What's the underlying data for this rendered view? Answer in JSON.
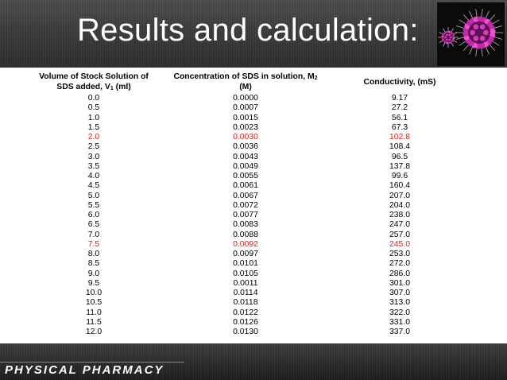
{
  "slide": {
    "title": "Results and calculation:",
    "footer": "PHYSICAL PHARMACY",
    "image_alt": "micelle",
    "colors": {
      "highlight": "#e0201b",
      "header_bg": "#3a3a3a"
    }
  },
  "table": {
    "col1": {
      "line1": "Volume of Stock Solution of",
      "line2a": "SDS added, V",
      "sub": "1",
      "line2b": " (ml)"
    },
    "col2": {
      "line1a": "Concentration of SDS in solution, M",
      "sub": "2",
      "line2": "(M)"
    },
    "col3": {
      "label": "Conductivity, (mS)"
    },
    "rows": [
      {
        "volume": "0.0",
        "conc": "0.0000",
        "cond": "9.17",
        "highlight": false
      },
      {
        "volume": "0.5",
        "conc": "0.0007",
        "cond": "27.2",
        "highlight": false
      },
      {
        "volume": "1.0",
        "conc": "0.0015",
        "cond": "56.1",
        "highlight": false
      },
      {
        "volume": "1.5",
        "conc": "0.0023",
        "cond": "67.3",
        "highlight": false
      },
      {
        "volume": "2.0",
        "conc": "0.0030",
        "cond": "102.8",
        "highlight": true
      },
      {
        "volume": "2.5",
        "conc": "0.0036",
        "cond": "108.4",
        "highlight": false
      },
      {
        "volume": "3.0",
        "conc": "0.0043",
        "cond": "96.5",
        "highlight": false
      },
      {
        "volume": "3.5",
        "conc": "0.0049",
        "cond": "137.8",
        "highlight": false
      },
      {
        "volume": "4.0",
        "conc": "0.0055",
        "cond": "99.6",
        "highlight": false
      },
      {
        "volume": "4.5",
        "conc": "0.0061",
        "cond": "160.4",
        "highlight": false
      },
      {
        "volume": "5.0",
        "conc": "0.0067",
        "cond": "207.0",
        "highlight": false
      },
      {
        "volume": "5.5",
        "conc": "0.0072",
        "cond": "204.0",
        "highlight": false
      },
      {
        "volume": "6.0",
        "conc": "0.0077",
        "cond": "238.0",
        "highlight": false
      },
      {
        "volume": "6.5",
        "conc": "0.0083",
        "cond": "247.0",
        "highlight": false
      },
      {
        "volume": "7.0",
        "conc": "0.0088",
        "cond": "257.0",
        "highlight": false
      },
      {
        "volume": "7.5",
        "conc": "0.0092",
        "cond": "245.0",
        "highlight": true
      },
      {
        "volume": "8.0",
        "conc": "0.0097",
        "cond": "253.0",
        "highlight": false
      },
      {
        "volume": "8.5",
        "conc": "0.0101",
        "cond": "272.0",
        "highlight": false
      },
      {
        "volume": "9.0",
        "conc": "0.0105",
        "cond": "286.0",
        "highlight": false
      },
      {
        "volume": "9.5",
        "conc": "0.0011",
        "cond": "301.0",
        "highlight": false
      },
      {
        "volume": "10.0",
        "conc": "0.0114",
        "cond": "307.0",
        "highlight": false
      },
      {
        "volume": "10.5",
        "conc": "0.0118",
        "cond": "313.0",
        "highlight": false
      },
      {
        "volume": "11.0",
        "conc": "0.0122",
        "cond": "322.0",
        "highlight": false
      },
      {
        "volume": "11.5",
        "conc": "0.0126",
        "cond": "331.0",
        "highlight": false
      },
      {
        "volume": "12.0",
        "conc": "0.0130",
        "cond": "337.0",
        "highlight": false
      }
    ]
  }
}
